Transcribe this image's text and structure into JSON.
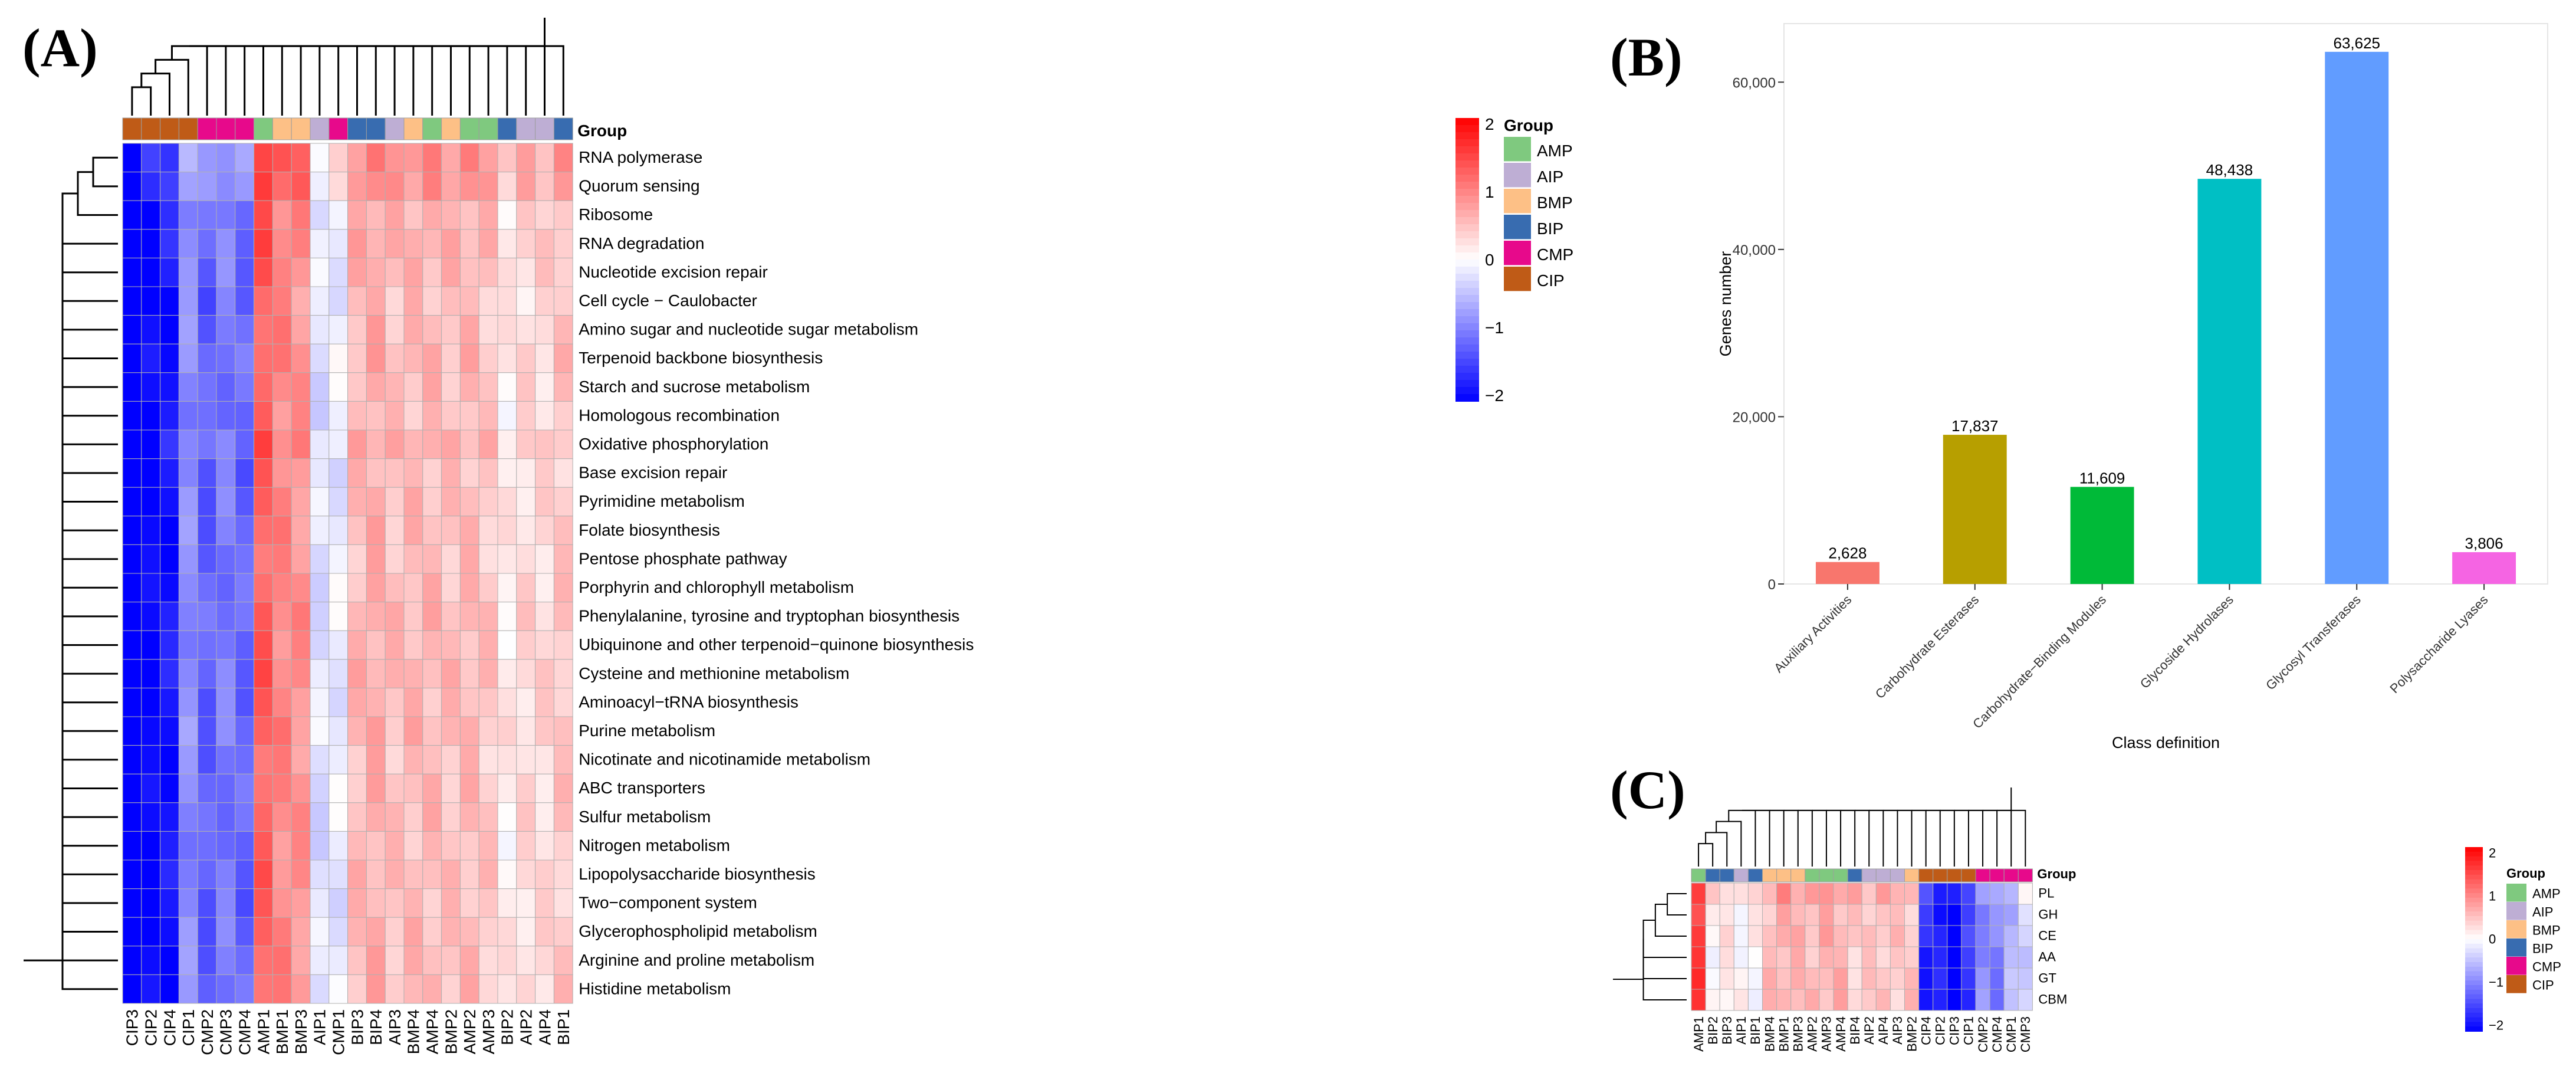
{
  "panel_labels": {
    "a": "(A)",
    "b": "(B)",
    "c": "(C)"
  },
  "colors": {
    "groups": {
      "AMP": "#7fc97f",
      "AIP": "#beaed4",
      "BMP": "#fdc086",
      "BIP": "#386cb0",
      "CMP": "#e7098b",
      "CIP": "#bf5b17"
    },
    "bars": [
      "#f8766d",
      "#b79f00",
      "#00ba38",
      "#00bfc4",
      "#619cff",
      "#f564e3"
    ],
    "scale_low": "#0000ff",
    "scale_mid": "#ffffff",
    "scale_high": "#ff0000"
  },
  "chart_data": [
    {
      "type": "heatmap",
      "panel": "A",
      "annotation_title": "Group",
      "legend_title": "Group",
      "legend_groups": [
        "AMP",
        "AIP",
        "BMP",
        "BIP",
        "CMP",
        "CIP"
      ],
      "scale_ticks": [
        "2",
        "1",
        "0",
        "−1",
        "−2"
      ],
      "columns": [
        "CIP3",
        "CIP2",
        "CIP4",
        "CIP1",
        "CMP2",
        "CMP3",
        "CMP4",
        "AMP1",
        "BMP1",
        "BMP3",
        "AIP1",
        "CMP1",
        "BIP3",
        "BIP4",
        "AIP3",
        "BMP4",
        "AMP4",
        "BMP2",
        "AMP2",
        "AMP3",
        "BIP2",
        "AIP2",
        "AIP4",
        "BIP1"
      ],
      "rows": [
        "RNA polymerase",
        "Quorum sensing",
        "Ribosome",
        "RNA degradation",
        "Nucleotide excision repair",
        "Cell cycle − Caulobacter",
        "Amino sugar and nucleotide sugar metabolism",
        "Terpenoid backbone biosynthesis",
        "Starch and sucrose metabolism",
        "Homologous recombination",
        "Oxidative phosphorylation",
        "Base excision repair",
        "Pyrimidine metabolism",
        "Folate biosynthesis",
        "Pentose phosphate pathway",
        "Porphyrin and chlorophyll metabolism",
        "Phenylalanine, tyrosine and tryptophan biosynthesis",
        "Ubiquinone and other terpenoid−quinone biosynthesis",
        "Cysteine and methionine metabolism",
        "Aminoacyl−tRNA biosynthesis",
        "Purine metabolism",
        "Nicotinate and nicotinamide metabolism",
        "ABC transporters",
        "Sulfur metabolism",
        "Nitrogen metabolism",
        "Lipopolysaccharide biosynthesis",
        "Two−component system",
        "Glycerophospholipid metabolism",
        "Arginine and proline metabolism",
        "Histidine metabolism"
      ],
      "col_means": [
        -2.3,
        -2.0,
        -1.85,
        -0.9,
        -1.25,
        -1.05,
        -1.2,
        1.25,
        0.95,
        0.85,
        -0.25,
        -0.15,
        0.55,
        0.65,
        0.5,
        0.55,
        0.55,
        0.5,
        0.55,
        0.45,
        0.15,
        0.3,
        0.3,
        0.45
      ],
      "row_effects": [
        0.35,
        0.3,
        0.05,
        0.1,
        0.05,
        -0.05,
        0.0,
        0.05,
        0.0,
        -0.05,
        0.1,
        -0.05,
        0.0,
        0.0,
        -0.05,
        0.0,
        0.05,
        0.0,
        0.05,
        0.0,
        0.05,
        -0.05,
        0.0,
        0.0,
        -0.05,
        0.0,
        -0.05,
        0.0,
        0.0,
        0.0
      ],
      "scale_range": [
        -2,
        2
      ]
    },
    {
      "type": "bar",
      "panel": "B",
      "categories": [
        "Auxiliary Activities",
        "Carbohydrate Esterases",
        "Carbohydrate−Binding Modules",
        "Glycoside Hydrolases",
        "Glycosyl Transferases",
        "Polysaccharide Lyases"
      ],
      "values": [
        2628,
        17837,
        11609,
        48438,
        63625,
        3806
      ],
      "value_labels": [
        "2,628",
        "17,837",
        "11,609",
        "48,438",
        "63,625",
        "3,806"
      ],
      "xlabel": "Class definition",
      "ylabel": "Genes number",
      "ylim": [
        0,
        67000
      ],
      "yticks": [
        0,
        20000,
        40000,
        60000
      ],
      "ytick_labels": [
        "0",
        "20,000",
        "40,000",
        "60,000"
      ]
    },
    {
      "type": "heatmap",
      "panel": "C",
      "annotation_title": "Group",
      "legend_title": "Group",
      "legend_groups": [
        "AMP",
        "AIP",
        "BMP",
        "BIP",
        "CMP",
        "CIP"
      ],
      "scale_ticks": [
        "2",
        "1",
        "0",
        "−1",
        "−2"
      ],
      "columns": [
        "AMP1",
        "BIP2",
        "BIP3",
        "AIP1",
        "BIP1",
        "BMP4",
        "BMP1",
        "BMP3",
        "AMP2",
        "AMP3",
        "AMP4",
        "BIP4",
        "AIP2",
        "AIP4",
        "AIP3",
        "BMP2",
        "CIP4",
        "CIP2",
        "CIP3",
        "CIP1",
        "CMP2",
        "CMP4",
        "CMP1",
        "CMP3"
      ],
      "rows": [
        "PL",
        "GH",
        "CE",
        "AA",
        "GT",
        "CBM"
      ],
      "col_means": [
        1.5,
        0.1,
        0.15,
        0.05,
        0.05,
        0.5,
        0.65,
        0.55,
        0.55,
        0.6,
        0.6,
        0.4,
        0.4,
        0.5,
        0.4,
        0.45,
        -1.7,
        -1.8,
        -2.1,
        -1.6,
        -0.9,
        -1.0,
        -0.6,
        -0.3
      ],
      "row_effects": [
        0.2,
        0.0,
        0.05,
        -0.05,
        0.0,
        0.0
      ],
      "scale_range": [
        -2,
        2
      ]
    }
  ]
}
